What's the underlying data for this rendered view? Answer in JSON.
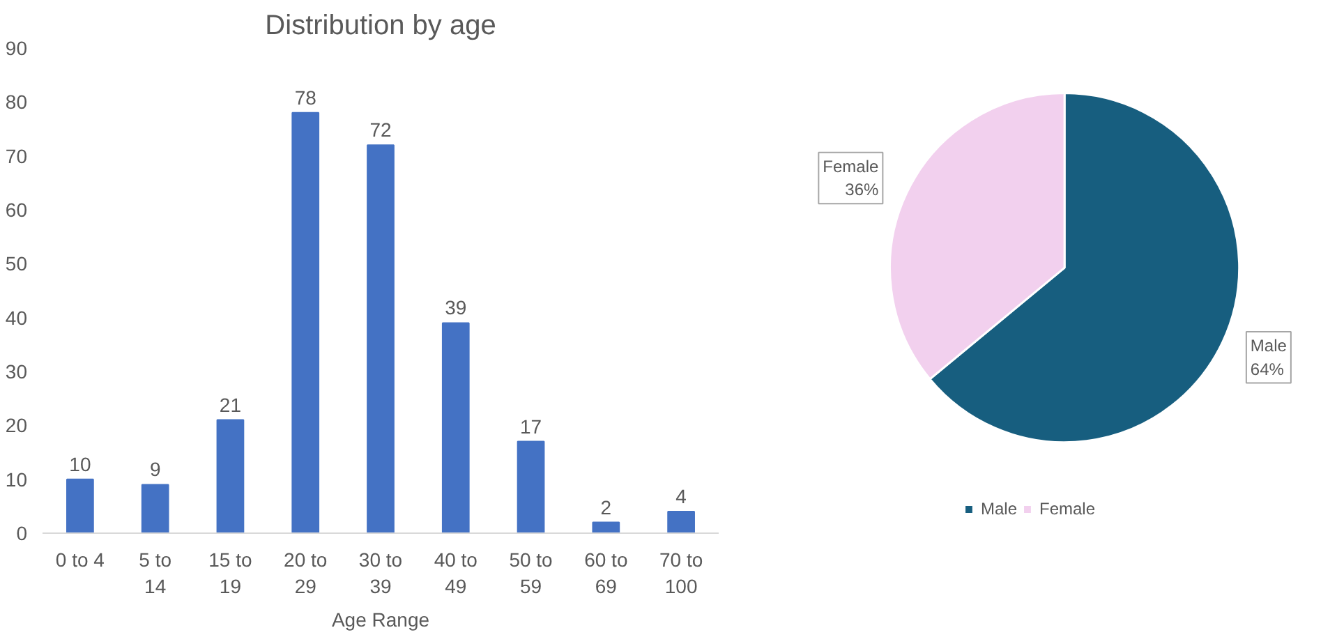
{
  "chart_data": [
    {
      "type": "bar",
      "title": "Distribution by age",
      "xlabel": "Age Range",
      "categories": [
        "0 to 4",
        "5 to 14",
        "15 to 19",
        "20 to 29",
        "30 to 39",
        "40 to 49",
        "50 to 59",
        "60 to 69",
        "70 to 100"
      ],
      "values": [
        10,
        9,
        21,
        78,
        72,
        39,
        17,
        2,
        4
      ],
      "color": "#4472c4",
      "ylim": [
        0,
        90
      ],
      "yticks": [
        0,
        10,
        20,
        30,
        40,
        50,
        60,
        70,
        80,
        90
      ],
      "grid": false,
      "data_labels": true
    },
    {
      "type": "pie",
      "categories": [
        "Male",
        "Female"
      ],
      "values": [
        64,
        36
      ],
      "colors": [
        "#175e7f",
        "#f2d0ee"
      ],
      "value_labels": [
        "64%",
        "36%"
      ],
      "legend": "bottom"
    }
  ]
}
